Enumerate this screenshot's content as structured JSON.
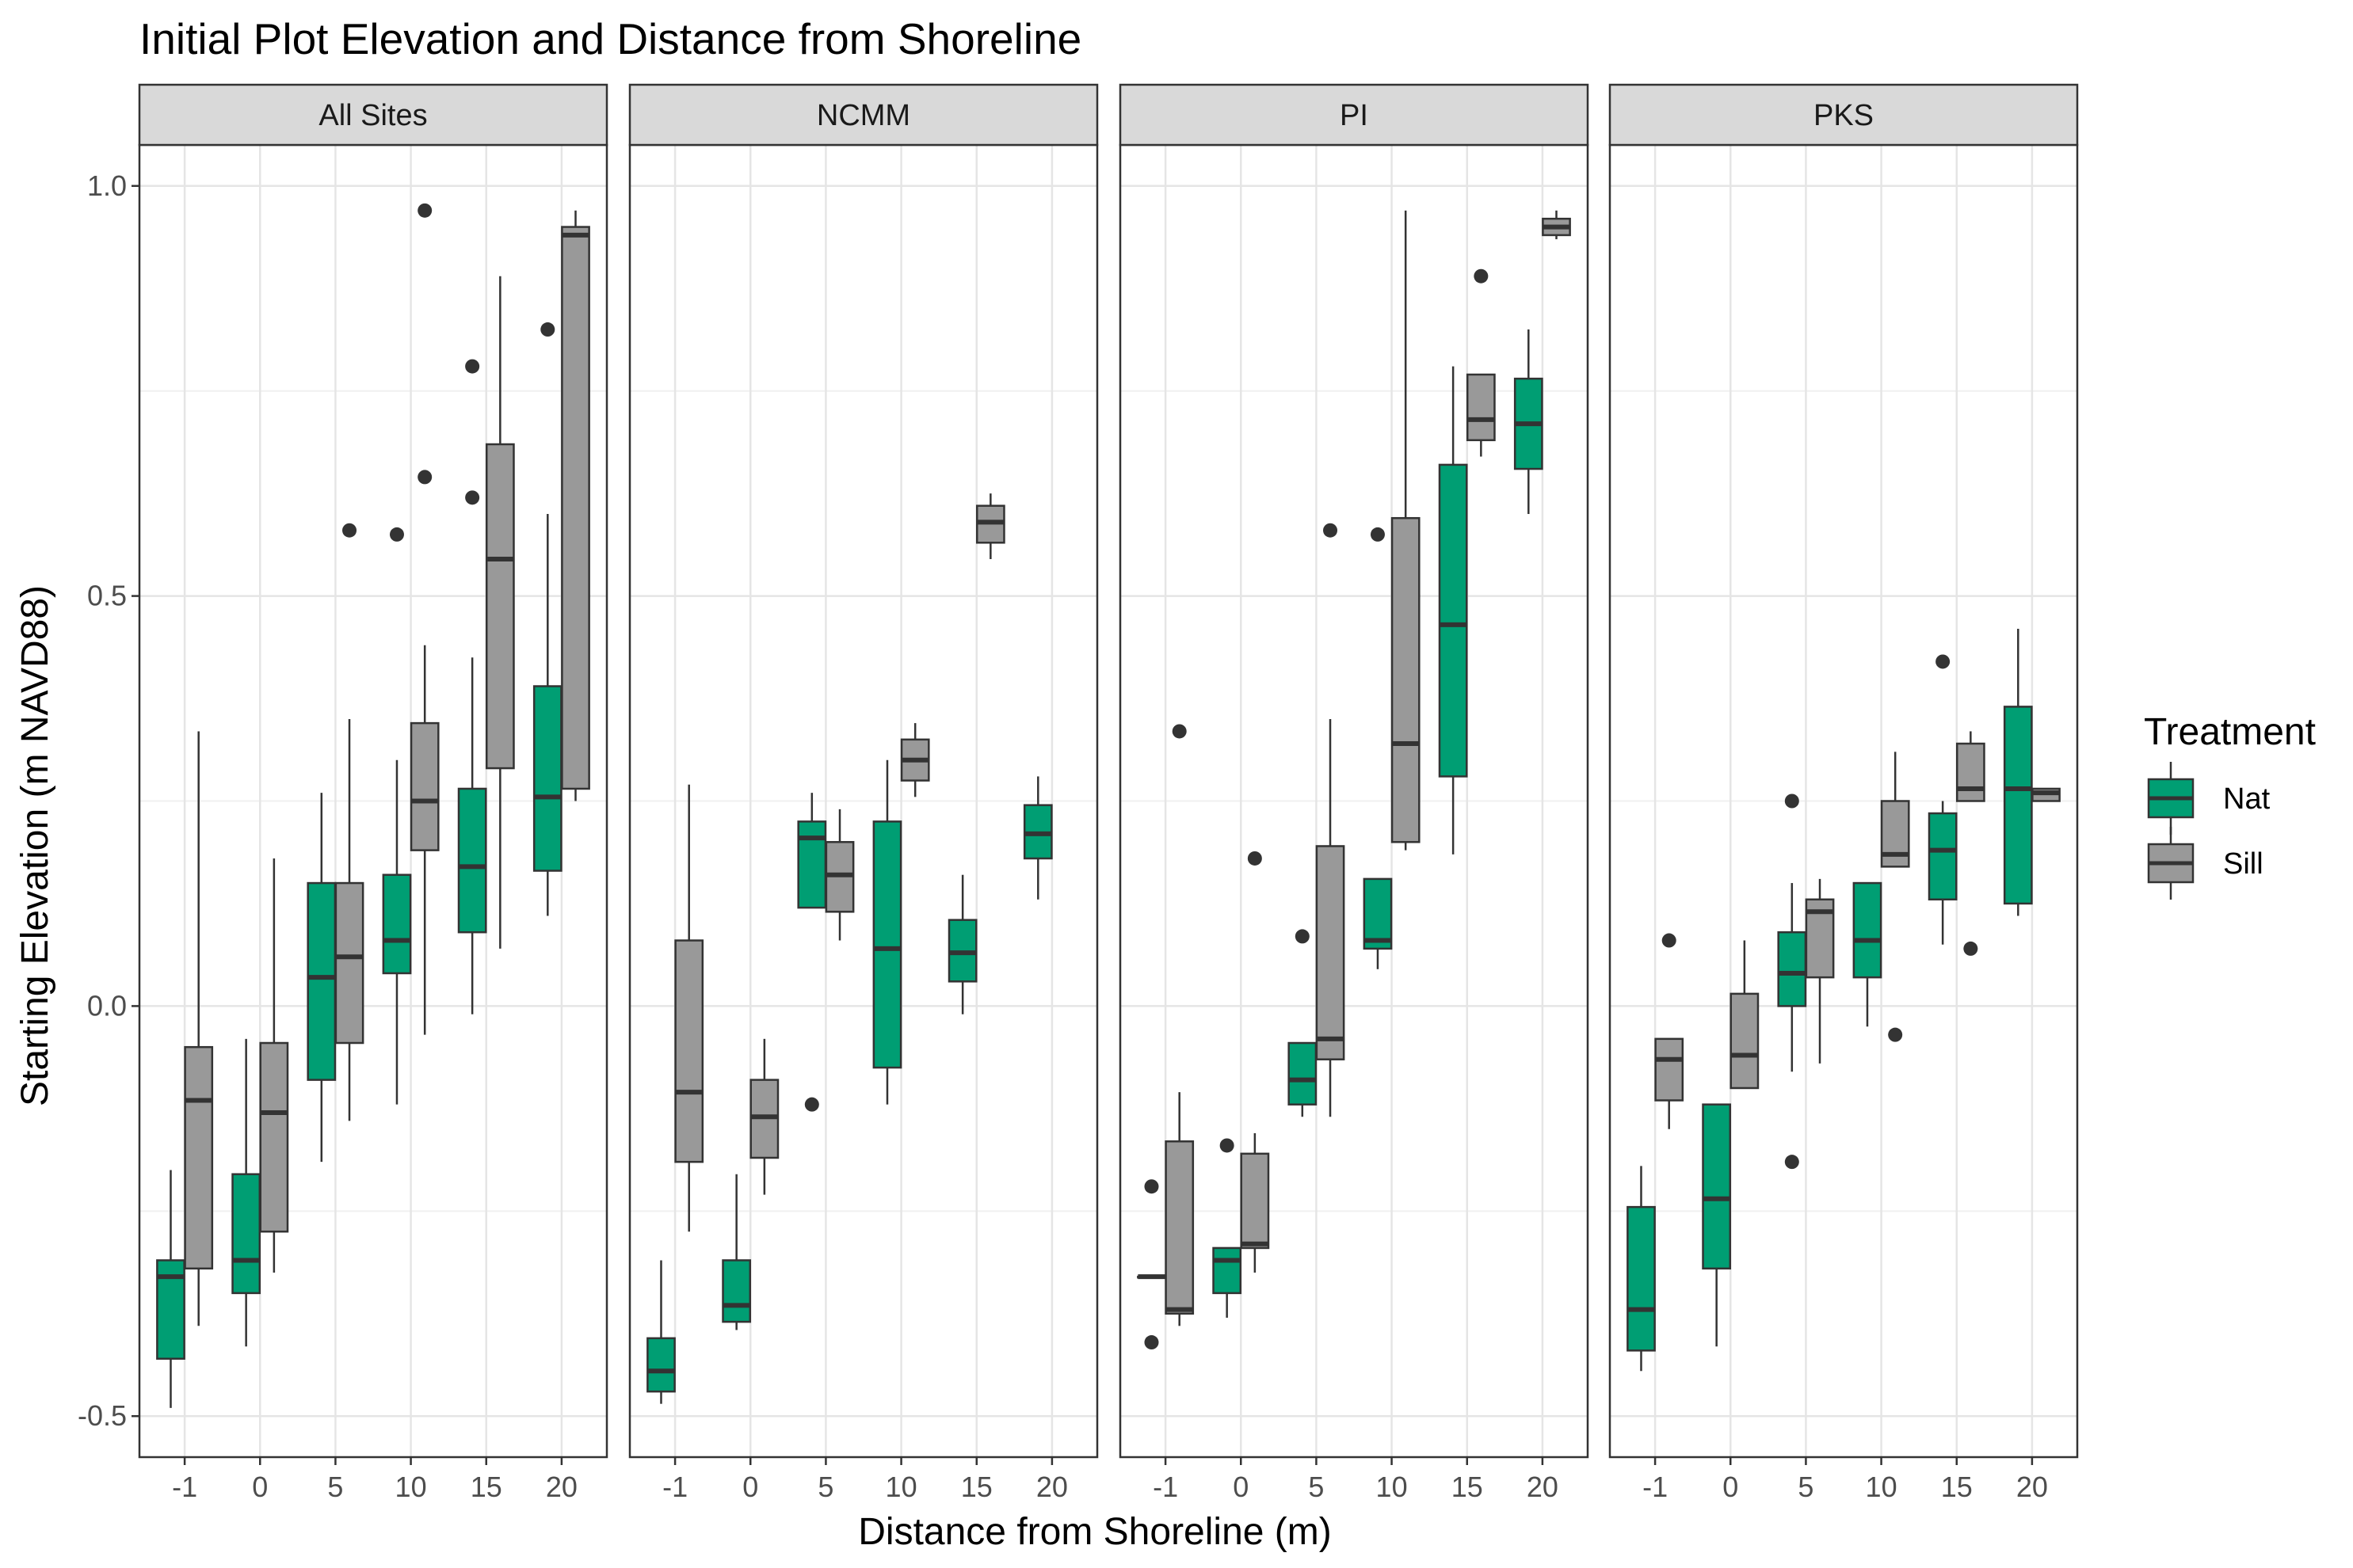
{
  "chart_data": {
    "type": "boxplot",
    "title": "Initial Plot Elevation and Distance from Shoreline",
    "xlabel": "Distance from Shoreline (m)",
    "ylabel": "Starting Elevation (m NAVD88)",
    "categories": [
      "-1",
      "0",
      "5",
      "10",
      "15",
      "20"
    ],
    "y_ticks": [
      "-0.5",
      "0.0",
      "0.5",
      "1.0"
    ],
    "ylim": [
      -0.55,
      1.05
    ],
    "grid": true,
    "legend": {
      "title": "Treatment",
      "position": "right",
      "entries": [
        {
          "name": "Nat",
          "color": "#009E73"
        },
        {
          "name": "Sill",
          "color": "#999999"
        }
      ]
    },
    "panels": [
      {
        "name": "All Sites",
        "boxes": [
          {
            "category": "-1",
            "series": "Nat",
            "low": -0.49,
            "q1": -0.43,
            "median": -0.33,
            "q3": -0.31,
            "high": -0.2,
            "outliers": []
          },
          {
            "category": "-1",
            "series": "Sill",
            "low": -0.39,
            "q1": -0.32,
            "median": -0.115,
            "q3": -0.05,
            "high": 0.335,
            "outliers": []
          },
          {
            "category": "0",
            "series": "Nat",
            "low": -0.415,
            "q1": -0.35,
            "median": -0.31,
            "q3": -0.205,
            "high": -0.04,
            "outliers": []
          },
          {
            "category": "0",
            "series": "Sill",
            "low": -0.325,
            "q1": -0.275,
            "median": -0.13,
            "q3": -0.045,
            "high": 0.18,
            "outliers": []
          },
          {
            "category": "5",
            "series": "Nat",
            "low": -0.19,
            "q1": -0.09,
            "median": 0.035,
            "q3": 0.15,
            "high": 0.26,
            "outliers": []
          },
          {
            "category": "5",
            "series": "Sill",
            "low": -0.14,
            "q1": -0.045,
            "median": 0.06,
            "q3": 0.15,
            "high": 0.35,
            "outliers": [
              0.58
            ]
          },
          {
            "category": "10",
            "series": "Nat",
            "low": -0.12,
            "q1": 0.04,
            "median": 0.08,
            "q3": 0.16,
            "high": 0.3,
            "outliers": [
              0.575
            ]
          },
          {
            "category": "10",
            "series": "Sill",
            "low": -0.035,
            "q1": 0.19,
            "median": 0.25,
            "q3": 0.345,
            "high": 0.44,
            "outliers": [
              0.645,
              0.97
            ]
          },
          {
            "category": "15",
            "series": "Nat",
            "low": -0.01,
            "q1": 0.09,
            "median": 0.17,
            "q3": 0.265,
            "high": 0.425,
            "outliers": [
              0.62,
              0.78
            ]
          },
          {
            "category": "15",
            "series": "Sill",
            "low": 0.07,
            "q1": 0.29,
            "median": 0.545,
            "q3": 0.685,
            "high": 0.89,
            "outliers": []
          },
          {
            "category": "20",
            "series": "Nat",
            "low": 0.11,
            "q1": 0.165,
            "median": 0.255,
            "q3": 0.39,
            "high": 0.6,
            "outliers": [
              0.825
            ]
          },
          {
            "category": "20",
            "series": "Sill",
            "low": 0.25,
            "q1": 0.265,
            "median": 0.94,
            "q3": 0.95,
            "high": 0.97,
            "outliers": []
          }
        ]
      },
      {
        "name": "NCMM",
        "boxes": [
          {
            "category": "-1",
            "series": "Nat",
            "low": -0.485,
            "q1": -0.47,
            "median": -0.445,
            "q3": -0.405,
            "high": -0.31,
            "outliers": []
          },
          {
            "category": "-1",
            "series": "Sill",
            "low": -0.275,
            "q1": -0.19,
            "median": -0.105,
            "q3": 0.08,
            "high": 0.27,
            "outliers": []
          },
          {
            "category": "0",
            "series": "Nat",
            "low": -0.395,
            "q1": -0.385,
            "median": -0.365,
            "q3": -0.31,
            "high": -0.205,
            "outliers": []
          },
          {
            "category": "0",
            "series": "Sill",
            "low": -0.23,
            "q1": -0.185,
            "median": -0.135,
            "q3": -0.09,
            "high": -0.04,
            "outliers": []
          },
          {
            "category": "5",
            "series": "Nat",
            "low": 0.12,
            "q1": 0.12,
            "median": 0.205,
            "q3": 0.225,
            "high": 0.26,
            "outliers": [
              -0.12
            ]
          },
          {
            "category": "5",
            "series": "Sill",
            "low": 0.08,
            "q1": 0.115,
            "median": 0.16,
            "q3": 0.2,
            "high": 0.24,
            "outliers": []
          },
          {
            "category": "10",
            "series": "Nat",
            "low": -0.12,
            "q1": -0.075,
            "median": 0.07,
            "q3": 0.225,
            "high": 0.3,
            "outliers": []
          },
          {
            "category": "10",
            "series": "Sill",
            "low": 0.255,
            "q1": 0.275,
            "median": 0.3,
            "q3": 0.325,
            "high": 0.345,
            "outliers": []
          },
          {
            "category": "15",
            "series": "Nat",
            "low": -0.01,
            "q1": 0.03,
            "median": 0.065,
            "q3": 0.105,
            "high": 0.16,
            "outliers": []
          },
          {
            "category": "15",
            "series": "Sill",
            "low": 0.545,
            "q1": 0.565,
            "median": 0.59,
            "q3": 0.61,
            "high": 0.625,
            "outliers": []
          },
          {
            "category": "20",
            "series": "Nat",
            "low": 0.13,
            "q1": 0.18,
            "median": 0.21,
            "q3": 0.245,
            "high": 0.28,
            "outliers": []
          }
        ]
      },
      {
        "name": "PI",
        "boxes": [
          {
            "category": "-1",
            "series": "Nat",
            "low": -0.33,
            "q1": -0.33,
            "median": -0.33,
            "q3": -0.33,
            "high": -0.33,
            "outliers": [
              -0.22,
              -0.41
            ]
          },
          {
            "category": "-1",
            "series": "Sill",
            "low": -0.39,
            "q1": -0.375,
            "median": -0.37,
            "q3": -0.165,
            "high": -0.105,
            "outliers": [
              0.335
            ]
          },
          {
            "category": "0",
            "series": "Nat",
            "low": -0.38,
            "q1": -0.35,
            "median": -0.31,
            "q3": -0.295,
            "high": -0.295,
            "outliers": [
              -0.17
            ]
          },
          {
            "category": "0",
            "series": "Sill",
            "low": -0.325,
            "q1": -0.295,
            "median": -0.29,
            "q3": -0.18,
            "high": -0.155,
            "outliers": [
              0.18
            ]
          },
          {
            "category": "5",
            "series": "Nat",
            "low": -0.135,
            "q1": -0.12,
            "median": -0.09,
            "q3": -0.045,
            "high": -0.045,
            "outliers": [
              0.085
            ]
          },
          {
            "category": "5",
            "series": "Sill",
            "low": -0.135,
            "q1": -0.065,
            "median": -0.04,
            "q3": 0.195,
            "high": 0.35,
            "outliers": [
              0.58
            ]
          },
          {
            "category": "10",
            "series": "Nat",
            "low": 0.045,
            "q1": 0.07,
            "median": 0.08,
            "q3": 0.155,
            "high": 0.155,
            "outliers": [
              0.575
            ]
          },
          {
            "category": "10",
            "series": "Sill",
            "low": 0.19,
            "q1": 0.2,
            "median": 0.32,
            "q3": 0.595,
            "high": 0.97,
            "outliers": []
          },
          {
            "category": "15",
            "series": "Nat",
            "low": 0.185,
            "q1": 0.28,
            "median": 0.465,
            "q3": 0.66,
            "high": 0.78,
            "outliers": []
          },
          {
            "category": "15",
            "series": "Sill",
            "low": 0.67,
            "q1": 0.69,
            "median": 0.715,
            "q3": 0.77,
            "high": 0.77,
            "outliers": [
              0.89
            ]
          },
          {
            "category": "20",
            "series": "Nat",
            "low": 0.6,
            "q1": 0.655,
            "median": 0.71,
            "q3": 0.765,
            "high": 0.825,
            "outliers": []
          },
          {
            "category": "20",
            "series": "Sill",
            "low": 0.935,
            "q1": 0.94,
            "median": 0.95,
            "q3": 0.96,
            "high": 0.97,
            "outliers": []
          }
        ]
      },
      {
        "name": "PKS",
        "boxes": [
          {
            "category": "-1",
            "series": "Nat",
            "low": -0.445,
            "q1": -0.42,
            "median": -0.37,
            "q3": -0.245,
            "high": -0.195,
            "outliers": []
          },
          {
            "category": "-1",
            "series": "Sill",
            "low": -0.15,
            "q1": -0.115,
            "median": -0.065,
            "q3": -0.04,
            "high": -0.04,
            "outliers": [
              0.08
            ]
          },
          {
            "category": "0",
            "series": "Nat",
            "low": -0.415,
            "q1": -0.32,
            "median": -0.235,
            "q3": -0.12,
            "high": -0.12,
            "outliers": []
          },
          {
            "category": "0",
            "series": "Sill",
            "low": -0.1,
            "q1": -0.1,
            "median": -0.06,
            "q3": 0.015,
            "high": 0.08,
            "outliers": []
          },
          {
            "category": "5",
            "series": "Nat",
            "low": -0.08,
            "q1": 0.0,
            "median": 0.04,
            "q3": 0.09,
            "high": 0.15,
            "outliers": [
              -0.19,
              0.25
            ]
          },
          {
            "category": "5",
            "series": "Sill",
            "low": -0.07,
            "q1": 0.035,
            "median": 0.115,
            "q3": 0.13,
            "high": 0.155,
            "outliers": []
          },
          {
            "category": "10",
            "series": "Nat",
            "low": -0.025,
            "q1": 0.035,
            "median": 0.08,
            "q3": 0.15,
            "high": 0.15,
            "outliers": []
          },
          {
            "category": "10",
            "series": "Sill",
            "low": 0.17,
            "q1": 0.17,
            "median": 0.185,
            "q3": 0.25,
            "high": 0.31,
            "outliers": [
              -0.035
            ]
          },
          {
            "category": "15",
            "series": "Nat",
            "low": 0.075,
            "q1": 0.13,
            "median": 0.19,
            "q3": 0.235,
            "high": 0.25,
            "outliers": [
              0.42
            ]
          },
          {
            "category": "15",
            "series": "Sill",
            "low": 0.25,
            "q1": 0.25,
            "median": 0.265,
            "q3": 0.32,
            "high": 0.335,
            "outliers": [
              0.07
            ]
          },
          {
            "category": "20",
            "series": "Nat",
            "low": 0.11,
            "q1": 0.125,
            "median": 0.265,
            "q3": 0.365,
            "high": 0.46,
            "outliers": []
          },
          {
            "category": "20",
            "series": "Sill",
            "low": 0.25,
            "q1": 0.25,
            "median": 0.26,
            "q3": 0.265,
            "high": 0.265,
            "outliers": []
          }
        ]
      }
    ]
  }
}
